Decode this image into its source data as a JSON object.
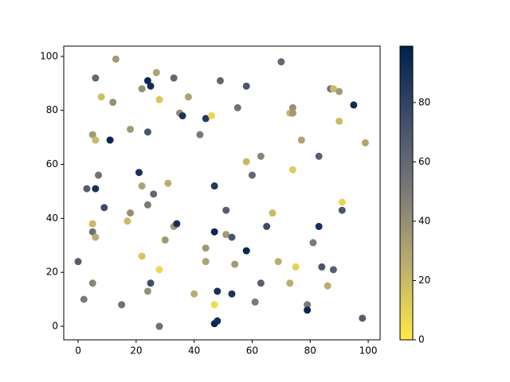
{
  "chart_data": {
    "type": "scatter",
    "x": [
      0,
      2,
      3,
      5,
      5,
      6,
      6,
      5,
      5,
      6,
      7,
      6,
      8,
      9,
      11,
      12,
      13,
      15,
      17,
      18,
      18,
      21,
      22,
      22,
      22,
      24,
      25,
      24,
      24,
      24,
      25,
      26,
      27,
      28,
      28,
      28,
      30,
      31,
      33,
      33,
      34,
      35,
      36,
      38,
      40,
      42,
      44,
      44,
      44,
      46,
      47,
      47,
      47,
      47,
      48,
      48,
      49,
      51,
      51,
      53,
      53,
      54,
      55,
      58,
      58,
      58,
      60,
      61,
      63,
      63,
      65,
      67,
      69,
      70,
      73,
      74,
      74,
      74,
      73,
      75,
      77,
      79,
      79,
      81,
      83,
      83,
      84,
      87,
      88,
      88,
      90,
      90,
      86,
      91,
      91,
      95,
      98,
      99
    ],
    "y": [
      24,
      10,
      51,
      16,
      71,
      92,
      69,
      38,
      35,
      33,
      56,
      51,
      85,
      44,
      69,
      83,
      99,
      8,
      39,
      73,
      42,
      57,
      88,
      52,
      26,
      91,
      89,
      72,
      45,
      13,
      16,
      49,
      94,
      84,
      21,
      0,
      32,
      53,
      92,
      37,
      38,
      79,
      78,
      85,
      12,
      71,
      29,
      24,
      77,
      78,
      52,
      35,
      8,
      1,
      2,
      13,
      91,
      43,
      34,
      33,
      12,
      23,
      81,
      89,
      61,
      28,
      56,
      9,
      63,
      16,
      37,
      42,
      24,
      98,
      79,
      81,
      79,
      58,
      16,
      22,
      69,
      8,
      6,
      31,
      63,
      37,
      22,
      88,
      88,
      21,
      87,
      76,
      15,
      46,
      43,
      82,
      3,
      68
    ],
    "c": [
      65,
      50,
      65,
      45,
      35,
      60,
      20,
      20,
      55,
      25,
      55,
      90,
      18,
      75,
      95,
      40,
      35,
      55,
      20,
      35,
      40,
      90,
      40,
      30,
      15,
      95,
      92,
      70,
      50,
      40,
      75,
      60,
      30,
      15,
      8,
      55,
      35,
      25,
      60,
      35,
      90,
      40,
      88,
      30,
      25,
      50,
      35,
      30,
      85,
      8,
      85,
      95,
      5,
      95,
      92,
      90,
      60,
      65,
      35,
      70,
      88,
      35,
      55,
      70,
      20,
      95,
      60,
      50,
      45,
      65,
      75,
      20,
      25,
      60,
      20,
      40,
      35,
      12,
      25,
      10,
      30,
      50,
      95,
      50,
      65,
      90,
      70,
      55,
      20,
      65,
      35,
      20,
      25,
      8,
      70,
      92,
      65,
      30
    ],
    "colormap": "cividis_r",
    "xlim": [
      -4.95,
      104.1
    ],
    "ylim": [
      -5,
      103.8
    ],
    "xticks": [
      0,
      20,
      40,
      60,
      80,
      100
    ],
    "yticks": [
      0,
      20,
      40,
      60,
      80,
      100
    ],
    "colorbar": {
      "lim": [
        0,
        99
      ],
      "ticks": [
        0,
        20,
        40,
        60,
        80
      ]
    }
  }
}
